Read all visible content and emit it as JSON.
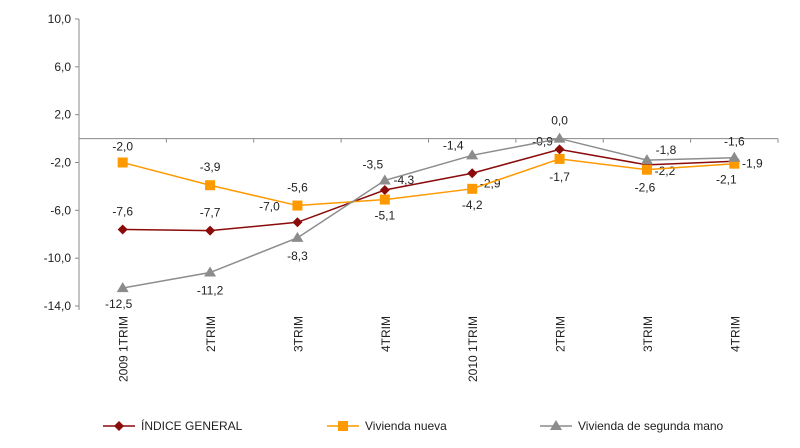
{
  "chart_data": {
    "type": "line",
    "categories": [
      "2009 1TRIM",
      "2TRIM",
      "3TRIM",
      "4TRIM",
      "2010 1TRIM",
      "2TRIM",
      "3TRIM",
      "4TRIM"
    ],
    "ylim": [
      -14,
      10
    ],
    "yticks": [
      "10,0",
      "6,0",
      "2,0",
      "-2,0",
      "-6,0",
      "-10,0",
      "-14,0"
    ],
    "ytick_values": [
      10,
      6,
      2,
      -2,
      -6,
      -10,
      -14
    ],
    "grid": false,
    "legend": "bottom",
    "series": [
      {
        "name": "ÍNDICE GENERAL",
        "color": "#8B0A0A",
        "marker": "diamond",
        "values": [
          -7.6,
          -7.7,
          -7.0,
          -4.3,
          -2.9,
          -0.9,
          -2.2,
          -1.9
        ],
        "labels": [
          "-7,6",
          "-7,7",
          "-7,0",
          "-4,3",
          "-2,9",
          "-0,9",
          "-2,2",
          "-1,9"
        ]
      },
      {
        "name": "Vivienda nueva",
        "color": "#FF9900",
        "marker": "square",
        "values": [
          -2.0,
          -3.9,
          -5.6,
          -5.1,
          -4.2,
          -1.7,
          -2.6,
          -2.1
        ],
        "labels": [
          "-2,0",
          "-3,9",
          "-5,6",
          "-5,1",
          "-4,2",
          "-1,7",
          "-2,6",
          "-2,1"
        ]
      },
      {
        "name": "Vivienda de segunda mano",
        "color": "#8C8C8C",
        "marker": "triangle",
        "values": [
          -12.5,
          -11.2,
          -8.3,
          -3.5,
          -1.4,
          0.0,
          -1.8,
          -1.6
        ],
        "labels": [
          "-12,5",
          "-11,2",
          "-8,3",
          "-3,5",
          "-1,4",
          "0,0",
          "-1,8",
          "-1,6"
        ]
      }
    ]
  }
}
